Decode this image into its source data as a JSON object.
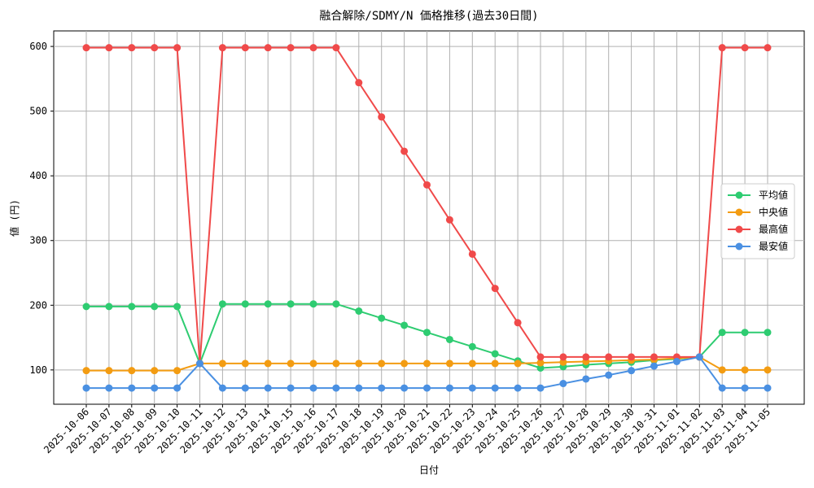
{
  "chart_data": {
    "type": "line",
    "title": "融合解除/SDMY/N 価格推移(過去30日間)",
    "x_label": "日付",
    "y_label": "値 (円)",
    "categories": [
      "2025-10-06",
      "2025-10-07",
      "2025-10-08",
      "2025-10-09",
      "2025-10-10",
      "2025-10-11",
      "2025-10-12",
      "2025-10-13",
      "2025-10-14",
      "2025-10-15",
      "2025-10-16",
      "2025-10-17",
      "2025-10-18",
      "2025-10-19",
      "2025-10-20",
      "2025-10-21",
      "2025-10-22",
      "2025-10-23",
      "2025-10-24",
      "2025-10-25",
      "2025-10-26",
      "2025-10-27",
      "2025-10-28",
      "2025-10-29",
      "2025-10-30",
      "2025-10-31",
      "2025-11-01",
      "2025-11-02",
      "2025-11-03",
      "2025-11-04",
      "2025-11-05"
    ],
    "series": [
      {
        "name": "平均値",
        "color": "#2ecc71",
        "values": [
          198,
          198,
          198,
          198,
          198,
          110,
          202,
          202,
          202,
          202,
          202,
          202,
          191,
          180,
          169,
          158,
          147,
          136,
          125,
          114,
          103,
          105,
          108,
          110,
          112,
          115,
          117,
          120,
          158,
          158,
          158
        ]
      },
      {
        "name": "中央値",
        "color": "#f39c12",
        "values": [
          99,
          99,
          99,
          99,
          99,
          110,
          110,
          110,
          110,
          110,
          110,
          110,
          110,
          110,
          110,
          110,
          110,
          110,
          110,
          110,
          111,
          112,
          113,
          114,
          115,
          116,
          118,
          120,
          100,
          100,
          100
        ]
      },
      {
        "name": "最高値",
        "color": "#f04a4a",
        "values": [
          598,
          598,
          598,
          598,
          598,
          110,
          598,
          598,
          598,
          598,
          598,
          598,
          544,
          491,
          438,
          386,
          332,
          279,
          226,
          173,
          120,
          120,
          120,
          120,
          120,
          120,
          120,
          120,
          598,
          598,
          598
        ]
      },
      {
        "name": "最安値",
        "color": "#4a90e2",
        "values": [
          72,
          72,
          72,
          72,
          72,
          110,
          72,
          72,
          72,
          72,
          72,
          72,
          72,
          72,
          72,
          72,
          72,
          72,
          72,
          72,
          72,
          79,
          86,
          92,
          99,
          106,
          113,
          120,
          72,
          72,
          72
        ]
      }
    ],
    "ylim": [
      47,
      624
    ],
    "yticks": [
      100,
      200,
      300,
      400,
      500,
      600
    ],
    "grid": true,
    "legend": "right"
  }
}
